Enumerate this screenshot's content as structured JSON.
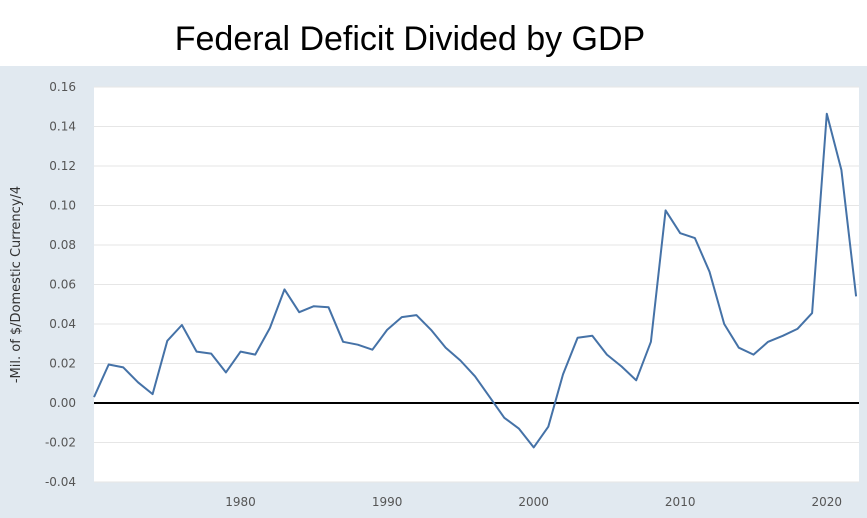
{
  "colors": {
    "frame": "#e1e9f0",
    "plot_bg": "#ffffff",
    "grid": "#e6e6e6",
    "line": "#4572a7",
    "zero_line": "#000000"
  },
  "chart_data": {
    "type": "line",
    "title": "Federal Deficit Divided by GDP",
    "xlabel": "",
    "ylabel": "-Mil. of $/Domestic Currency/4",
    "xlim": [
      1970,
      2022.2
    ],
    "ylim": [
      -0.04,
      0.16
    ],
    "grid": true,
    "yticks": [
      -0.04,
      -0.02,
      0.0,
      0.02,
      0.04,
      0.06,
      0.08,
      0.1,
      0.12,
      0.14,
      0.16
    ],
    "ytick_labels": [
      "-0.04",
      "-0.02",
      "0.00",
      "0.02",
      "0.04",
      "0.06",
      "0.08",
      "0.10",
      "0.12",
      "0.14",
      "0.16"
    ],
    "xticks": [
      1980,
      1990,
      2000,
      2010,
      2020
    ],
    "xtick_labels": [
      "1980",
      "1990",
      "2000",
      "2010",
      "2020"
    ],
    "series": [
      {
        "name": "Federal Deficit Divided by GDP",
        "x": [
          1970,
          1971,
          1972,
          1973,
          1974,
          1975,
          1976,
          1977,
          1978,
          1979,
          1980,
          1981,
          1982,
          1983,
          1984,
          1985,
          1986,
          1987,
          1988,
          1989,
          1990,
          1991,
          1992,
          1993,
          1994,
          1995,
          1996,
          1997,
          1998,
          1999,
          2000,
          2001,
          2002,
          2003,
          2004,
          2005,
          2006,
          2007,
          2008,
          2009,
          2010,
          2011,
          2012,
          2013,
          2014,
          2015,
          2016,
          2017,
          2018,
          2019,
          2020,
          2021,
          2022
        ],
        "values": [
          0.003,
          0.0195,
          0.018,
          0.0105,
          0.0045,
          0.0315,
          0.0395,
          0.026,
          0.025,
          0.0155,
          0.026,
          0.0245,
          0.038,
          0.0575,
          0.046,
          0.049,
          0.0485,
          0.031,
          0.0295,
          0.027,
          0.037,
          0.0435,
          0.0445,
          0.037,
          0.028,
          0.0215,
          0.0135,
          0.003,
          -0.0075,
          -0.013,
          -0.0225,
          -0.012,
          0.0145,
          0.033,
          0.034,
          0.0245,
          0.0185,
          0.0115,
          0.031,
          0.0975,
          0.086,
          0.0835,
          0.0665,
          0.04,
          0.028,
          0.0245,
          0.031,
          0.034,
          0.0375,
          0.0455,
          0.1465,
          0.118,
          0.054
        ]
      }
    ],
    "reference_line": 0.0
  }
}
